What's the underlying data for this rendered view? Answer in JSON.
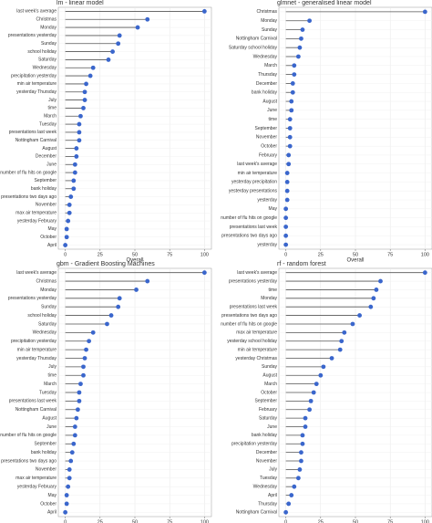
{
  "chart_data": [
    {
      "type": "lollipop",
      "title": "lm - linear model",
      "xlabel": "Overall",
      "color": "#3a66cc",
      "grid": true,
      "categories": [
        "last week's average",
        "Christmas",
        "Monday",
        "presentations yesterday",
        "Sunday",
        "school holiday",
        "Saturday",
        "Wednesday",
        "precipitation yesterday",
        "min air temperature",
        "yesterday Thursday",
        "July",
        "time",
        "March",
        "Tuesday",
        "presentations last week",
        "Nottingham Carnival",
        "August",
        "December",
        "June",
        "number of flu hits on google",
        "September",
        "bank holiday",
        "presentations two days ago",
        "November",
        "max air temperature",
        "yesterday February",
        "May",
        "October",
        "April"
      ],
      "values": [
        100,
        59,
        52,
        39,
        38,
        34,
        31,
        20,
        18,
        15,
        14,
        14,
        13,
        11,
        10,
        10,
        10,
        8,
        8,
        7,
        7,
        6,
        6,
        4,
        3,
        3,
        2,
        1,
        1,
        0
      ],
      "xlim": [
        -5,
        105
      ],
      "xticks": [
        0,
        25,
        50,
        75,
        100
      ]
    },
    {
      "type": "lollipop",
      "title": "glmnet - generalised linear model",
      "xlabel": "Overall",
      "color": "#3a66cc",
      "grid": true,
      "categories": [
        "Christmas",
        "Monday",
        "Sunday",
        "Nottingham Carnival",
        "Saturday school holiday",
        "Wednesday",
        "March",
        "Thursday",
        "December",
        "bank holiday",
        "August",
        "June",
        "time",
        "September",
        "November",
        "October",
        "February",
        "last week's average",
        "min air temperature",
        "yesterday precipitation",
        "yesterday presentations",
        "yesterday",
        "May",
        "number of flu hits on google",
        "presentations last week",
        "presentations two days ago",
        "yesterday"
      ],
      "values": [
        100,
        17,
        12,
        11,
        10,
        9,
        6,
        6,
        5,
        5,
        4,
        4,
        3,
        3,
        3,
        3,
        2,
        2,
        1,
        1,
        1,
        1,
        0,
        0,
        0,
        0,
        0
      ],
      "xlim": [
        -5,
        105
      ],
      "xticks": [
        0,
        25,
        50,
        75,
        100
      ]
    },
    {
      "type": "lollipop",
      "title": "gbm - Gradient Boosting Machines",
      "xlabel": "Overall",
      "color": "#3a66cc",
      "grid": true,
      "categories": [
        "last week's average",
        "Christmas",
        "Monday",
        "presentations yesterday",
        "Sunday",
        "school holiday",
        "Saturday",
        "Wednesday",
        "precipitation yesterday",
        "min air temperature",
        "yesterday Thursday",
        "July",
        "time",
        "March",
        "Tuesday",
        "presentations last week",
        "Nottingham Carnival",
        "August",
        "June",
        "number of flu hits on google",
        "September",
        "bank holiday",
        "presentations two days ago",
        "November",
        "max air temperature",
        "yesterday February",
        "May",
        "October",
        "April"
      ],
      "values": [
        100,
        59,
        51,
        39,
        38,
        33,
        30,
        20,
        17,
        15,
        14,
        13,
        13,
        11,
        10,
        10,
        9,
        8,
        7,
        7,
        6,
        5,
        4,
        3,
        3,
        2,
        1,
        1,
        0
      ],
      "xlim": [
        -5,
        105
      ],
      "xticks": [
        0,
        25,
        50,
        75,
        100
      ]
    },
    {
      "type": "lollipop",
      "title": "rf - random forest",
      "xlabel": "Overall",
      "color": "#3a66cc",
      "grid": true,
      "categories": [
        "last week's average",
        "presentations yesterday",
        "time",
        "Monday",
        "presentations last week",
        "presentations two days ago",
        "number of flu hits on google",
        "max air temperature",
        "yesterday school holiday",
        "min air temperature",
        "yesterday Christmas",
        "Sunday",
        "August",
        "March",
        "October",
        "September",
        "February",
        "Saturday",
        "June",
        "bank holiday",
        "precipitation yesterday",
        "December",
        "November",
        "July",
        "Tuesday",
        "Wednesday",
        "April",
        "Thursday",
        "Nottingham Carnival"
      ],
      "values": [
        100,
        68,
        65,
        63,
        61,
        53,
        48,
        42,
        40,
        39,
        33,
        27,
        25,
        22,
        20,
        18,
        17,
        14,
        14,
        12,
        12,
        11,
        11,
        10,
        9,
        6,
        4,
        2,
        0
      ],
      "xlim": [
        -5,
        105
      ],
      "xticks": [
        0,
        25,
        50,
        75,
        100
      ]
    }
  ]
}
